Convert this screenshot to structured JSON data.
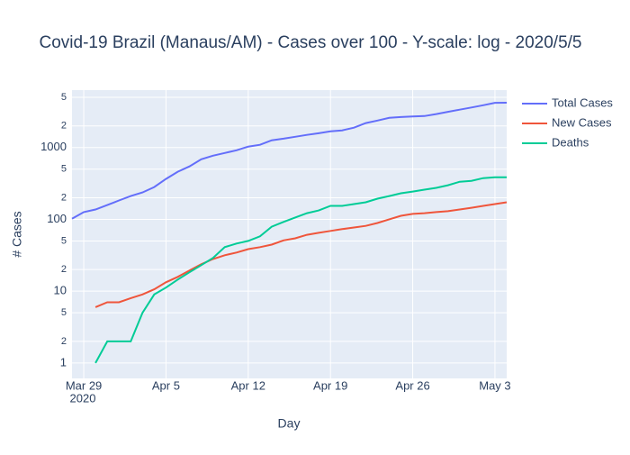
{
  "chart_data": {
    "type": "line",
    "title": "Covid-19 Brazil (Manaus/AM) - Cases over 100 - Y-scale: log - 2020/5/5",
    "x_label": "Day",
    "y_label": "# Cases",
    "x": [
      "2020-03-28",
      "2020-03-29",
      "2020-03-30",
      "2020-03-31",
      "2020-04-01",
      "2020-04-02",
      "2020-04-03",
      "2020-04-04",
      "2020-04-05",
      "2020-04-06",
      "2020-04-07",
      "2020-04-08",
      "2020-04-09",
      "2020-04-10",
      "2020-04-11",
      "2020-04-12",
      "2020-04-13",
      "2020-04-14",
      "2020-04-15",
      "2020-04-16",
      "2020-04-17",
      "2020-04-18",
      "2020-04-19",
      "2020-04-20",
      "2020-04-21",
      "2020-04-22",
      "2020-04-23",
      "2020-04-24",
      "2020-04-25",
      "2020-04-26",
      "2020-04-27",
      "2020-04-28",
      "2020-04-29",
      "2020-04-30",
      "2020-05-01",
      "2020-05-02",
      "2020-05-03",
      "2020-05-04"
    ],
    "series": [
      {
        "name": "Total Cases",
        "color": "#636efa",
        "values": [
          102,
          126,
          137,
          158,
          183,
          211,
          237,
          282,
          365,
          460,
          545,
          685,
          770,
          840,
          915,
          1030,
          1090,
          1260,
          1330,
          1410,
          1500,
          1580,
          1680,
          1730,
          1890,
          2190,
          2370,
          2590,
          2660,
          2700,
          2740,
          2920,
          3140,
          3370,
          3610,
          3880,
          4190,
          4200
        ]
      },
      {
        "name": "New Cases",
        "color": "#EF553B",
        "values": [
          null,
          null,
          6,
          7,
          7,
          8,
          9,
          10.6,
          13.3,
          15.8,
          19.4,
          23.7,
          28,
          31.6,
          34.5,
          38.5,
          41,
          44.5,
          51,
          54.5,
          61,
          65,
          69,
          73,
          77,
          81,
          89,
          100,
          112,
          119,
          122,
          126,
          130,
          137,
          145,
          154,
          163,
          173
        ]
      },
      {
        "name": "Deaths",
        "color": "#00cc96",
        "values": [
          null,
          null,
          1,
          2,
          2,
          2,
          5,
          9,
          11.2,
          14.5,
          18.3,
          23,
          29,
          41,
          46,
          50,
          58,
          79,
          92,
          106,
          122,
          133,
          154,
          154,
          163,
          173,
          194,
          211,
          231,
          244,
          259,
          274,
          298,
          334,
          344,
          375,
          386,
          386
        ]
      }
    ],
    "xlim": [
      "2020-03-28",
      "2020-05-04"
    ],
    "xticks": [
      {
        "value": "2020-03-29",
        "label": "Mar 29"
      },
      {
        "value": "2020-04-05",
        "label": "Apr 5"
      },
      {
        "value": "2020-04-12",
        "label": "Apr 12"
      },
      {
        "value": "2020-04-19",
        "label": "Apr 19"
      },
      {
        "value": "2020-04-26",
        "label": "Apr 26"
      },
      {
        "value": "2020-05-03",
        "label": "May 3"
      }
    ],
    "x_year": "2020",
    "log_y": true,
    "ylim": [
      0.61,
      6300
    ],
    "yticks": [
      1,
      {
        "value": 2,
        "label": "2"
      },
      {
        "value": 5,
        "label": "5"
      },
      10,
      {
        "value": 20,
        "label": "2"
      },
      {
        "value": 50,
        "label": "5"
      },
      100,
      {
        "value": 200,
        "label": "2"
      },
      {
        "value": 500,
        "label": "5"
      },
      1000,
      {
        "value": 2000,
        "label": "2"
      },
      {
        "value": 5000,
        "label": "5"
      }
    ],
    "grid": true,
    "legend": "right"
  }
}
